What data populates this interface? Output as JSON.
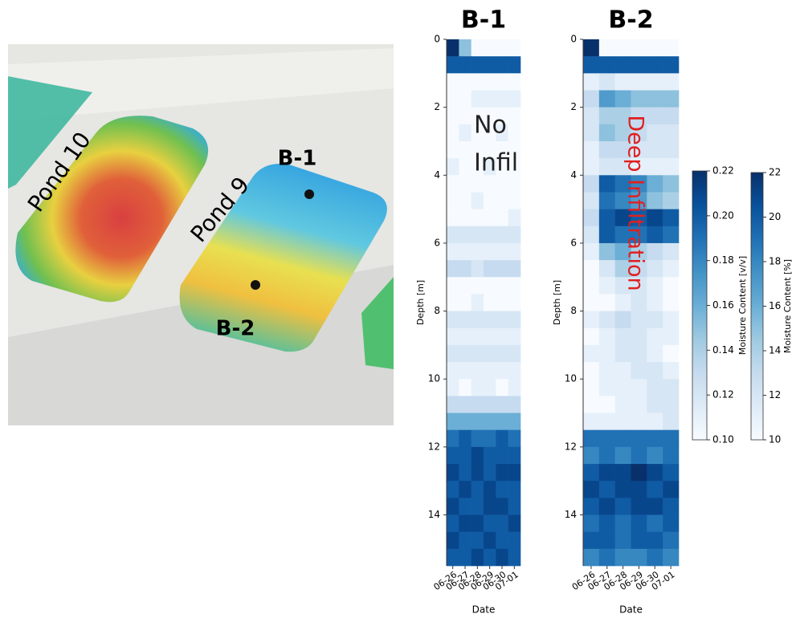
{
  "image": {
    "labels": [
      "Pond 10",
      "Pond 9",
      "B-1",
      "B-2"
    ]
  },
  "chart_data": [
    {
      "type": "heatmap",
      "title": "B-1",
      "xlabel": "Date",
      "ylabel": "Depth [m]",
      "x": [
        "06-26",
        "06-27",
        "06-28",
        "06-29",
        "06-30",
        "07-01"
      ],
      "ylim": [
        0,
        15.5
      ],
      "yticks": [
        0,
        2,
        4,
        6,
        8,
        10,
        12,
        14
      ],
      "annotation": [
        "No",
        "Infil"
      ],
      "values": [
        [
          0.22,
          0.15,
          0.1,
          0.1,
          0.1,
          0.1
        ],
        [
          0.2,
          0.2,
          0.2,
          0.2,
          0.2,
          0.2
        ],
        [
          0.1,
          0.1,
          0.1,
          0.1,
          0.1,
          0.1
        ],
        [
          0.1,
          0.1,
          0.11,
          0.11,
          0.11,
          0.11
        ],
        [
          0.1,
          0.1,
          0.1,
          0.1,
          0.1,
          0.1
        ],
        [
          0.1,
          0.11,
          0.1,
          0.1,
          0.11,
          0.1
        ],
        [
          0.1,
          0.1,
          0.1,
          0.1,
          0.1,
          0.1
        ],
        [
          0.11,
          0.1,
          0.1,
          0.11,
          0.1,
          0.1
        ],
        [
          0.1,
          0.1,
          0.1,
          0.1,
          0.1,
          0.1
        ],
        [
          0.1,
          0.1,
          0.11,
          0.1,
          0.1,
          0.1
        ],
        [
          0.1,
          0.1,
          0.1,
          0.1,
          0.1,
          0.11
        ],
        [
          0.12,
          0.12,
          0.12,
          0.12,
          0.12,
          0.12
        ],
        [
          0.11,
          0.11,
          0.11,
          0.11,
          0.11,
          0.11
        ],
        [
          0.13,
          0.13,
          0.12,
          0.13,
          0.13,
          0.13
        ],
        [
          0.1,
          0.1,
          0.1,
          0.1,
          0.1,
          0.1
        ],
        [
          0.1,
          0.1,
          0.11,
          0.1,
          0.1,
          0.1
        ],
        [
          0.12,
          0.12,
          0.12,
          0.12,
          0.12,
          0.12
        ],
        [
          0.11,
          0.11,
          0.11,
          0.11,
          0.11,
          0.11
        ],
        [
          0.12,
          0.12,
          0.12,
          0.12,
          0.12,
          0.12
        ],
        [
          0.11,
          0.11,
          0.11,
          0.11,
          0.11,
          0.11
        ],
        [
          0.11,
          0.1,
          0.11,
          0.11,
          0.1,
          0.11
        ],
        [
          0.13,
          0.13,
          0.13,
          0.13,
          0.13,
          0.13
        ],
        [
          0.16,
          0.16,
          0.16,
          0.16,
          0.16,
          0.16
        ],
        [
          0.19,
          0.2,
          0.19,
          0.19,
          0.2,
          0.19
        ],
        [
          0.2,
          0.2,
          0.21,
          0.2,
          0.2,
          0.2
        ],
        [
          0.21,
          0.2,
          0.21,
          0.2,
          0.21,
          0.21
        ],
        [
          0.2,
          0.21,
          0.2,
          0.21,
          0.2,
          0.2
        ],
        [
          0.21,
          0.2,
          0.2,
          0.21,
          0.21,
          0.2
        ],
        [
          0.2,
          0.21,
          0.21,
          0.2,
          0.2,
          0.21
        ],
        [
          0.21,
          0.2,
          0.2,
          0.21,
          0.2,
          0.2
        ],
        [
          0.2,
          0.2,
          0.21,
          0.2,
          0.21,
          0.2
        ]
      ]
    },
    {
      "type": "heatmap",
      "title": "B-2",
      "xlabel": "Date",
      "ylabel": "Depth [m]",
      "x": [
        "06-26",
        "06-27",
        "06-28",
        "06-29",
        "06-30",
        "07-01"
      ],
      "ylim": [
        0,
        15.5
      ],
      "yticks": [
        0,
        2,
        4,
        6,
        8,
        10,
        12,
        14
      ],
      "annotation": [
        "Deep Infiltration"
      ],
      "values": [
        [
          0.22,
          0.1,
          0.1,
          0.1,
          0.1,
          0.1
        ],
        [
          0.2,
          0.2,
          0.2,
          0.2,
          0.2,
          0.2
        ],
        [
          0.11,
          0.12,
          0.11,
          0.11,
          0.11,
          0.11
        ],
        [
          0.13,
          0.17,
          0.16,
          0.15,
          0.15,
          0.15
        ],
        [
          0.12,
          0.14,
          0.14,
          0.13,
          0.13,
          0.13
        ],
        [
          0.12,
          0.15,
          0.14,
          0.13,
          0.12,
          0.12
        ],
        [
          0.11,
          0.13,
          0.13,
          0.12,
          0.12,
          0.12
        ],
        [
          0.11,
          0.12,
          0.12,
          0.11,
          0.11,
          0.11
        ],
        [
          0.13,
          0.2,
          0.19,
          0.18,
          0.16,
          0.15
        ],
        [
          0.12,
          0.19,
          0.18,
          0.17,
          0.15,
          0.14
        ],
        [
          0.13,
          0.2,
          0.21,
          0.2,
          0.21,
          0.2
        ],
        [
          0.12,
          0.2,
          0.19,
          0.19,
          0.2,
          0.19
        ],
        [
          0.11,
          0.15,
          0.16,
          0.14,
          0.13,
          0.12
        ],
        [
          0.1,
          0.12,
          0.14,
          0.13,
          0.12,
          0.11
        ],
        [
          0.1,
          0.11,
          0.12,
          0.12,
          0.11,
          0.1
        ],
        [
          0.1,
          0.1,
          0.11,
          0.12,
          0.11,
          0.1
        ],
        [
          0.11,
          0.12,
          0.13,
          0.12,
          0.12,
          0.11
        ],
        [
          0.1,
          0.11,
          0.12,
          0.12,
          0.11,
          0.11
        ],
        [
          0.11,
          0.11,
          0.12,
          0.12,
          0.11,
          0.1
        ],
        [
          0.1,
          0.11,
          0.11,
          0.12,
          0.12,
          0.11
        ],
        [
          0.1,
          0.11,
          0.11,
          0.11,
          0.12,
          0.12
        ],
        [
          0.1,
          0.1,
          0.11,
          0.11,
          0.12,
          0.12
        ],
        [
          0.11,
          0.11,
          0.11,
          0.11,
          0.11,
          0.12
        ],
        [
          0.19,
          0.19,
          0.19,
          0.19,
          0.19,
          0.19
        ],
        [
          0.18,
          0.19,
          0.18,
          0.19,
          0.18,
          0.19
        ],
        [
          0.2,
          0.21,
          0.21,
          0.22,
          0.21,
          0.2
        ],
        [
          0.21,
          0.2,
          0.21,
          0.21,
          0.2,
          0.21
        ],
        [
          0.2,
          0.21,
          0.2,
          0.21,
          0.21,
          0.2
        ],
        [
          0.19,
          0.2,
          0.19,
          0.2,
          0.19,
          0.2
        ],
        [
          0.2,
          0.2,
          0.19,
          0.2,
          0.2,
          0.19
        ],
        [
          0.18,
          0.19,
          0.18,
          0.18,
          0.19,
          0.18
        ]
      ],
      "colorbars": [
        {
          "label": "Moisture Content [v/v]",
          "lim": [
            0.1,
            0.22
          ],
          "ticks": [
            {
              "value": 0.1,
              "label": "0.10"
            },
            0.12,
            0.14,
            0.16,
            0.18,
            {
              "value": 0.2,
              "label": "0.20"
            },
            0.22
          ]
        },
        {
          "label": "Moisture Content [%]",
          "lim": [
            10,
            22
          ],
          "ticks": [
            10,
            12,
            14,
            16,
            18,
            20,
            22
          ]
        }
      ]
    }
  ]
}
